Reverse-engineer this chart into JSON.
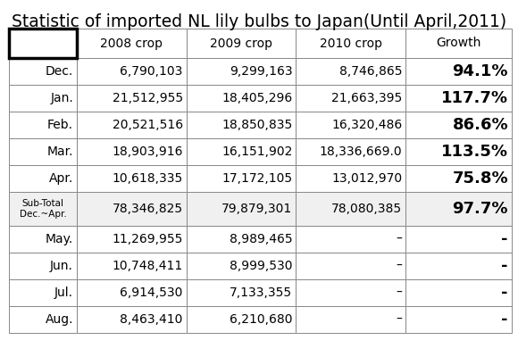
{
  "title": "Statistic of imported NL lily bulbs to Japan(Until April,2011)",
  "col_headers": [
    "",
    "2008 crop",
    "2009 crop",
    "2010 crop",
    "Growth"
  ],
  "rows": [
    [
      "Dec.",
      "6,790,103",
      "9,299,163",
      "8,746,865",
      "94.1%"
    ],
    [
      "Jan.",
      "21,512,955",
      "18,405,296",
      "21,663,395",
      "117.7%"
    ],
    [
      "Feb.",
      "20,521,516",
      "18,850,835",
      "16,320,486",
      "86.6%"
    ],
    [
      "Mar.",
      "18,903,916",
      "16,151,902",
      "18,336,669.0",
      "113.5%"
    ],
    [
      "Apr.",
      "10,618,335",
      "17,172,105",
      "13,012,970",
      "75.8%"
    ],
    [
      "Sub-Total\nDec.~Apr.",
      "78,346,825",
      "79,879,301",
      "78,080,385",
      "97.7%"
    ],
    [
      "May.",
      "11,269,955",
      "8,989,465",
      "–",
      "-"
    ],
    [
      "Jun.",
      "10,748,411",
      "8,999,530",
      "–",
      "-"
    ],
    [
      "Jul.",
      "6,914,530",
      "7,133,355",
      "–",
      "-"
    ],
    [
      "Aug.",
      "8,463,410",
      "6,210,680",
      "–",
      "-"
    ]
  ],
  "growth_bold_rows": [
    0,
    1,
    2,
    3,
    4,
    5
  ],
  "subtotal_row_index": 5,
  "title_fontsize": 13.5,
  "header_fontsize": 10,
  "cell_fontsize": 10,
  "subtotal_label_fontsize": 7.5,
  "growth_fontsize": 13,
  "bg_color": "#ffffff",
  "border_color": "#888888",
  "thick_border_color": "#000000",
  "title_color": "#000000",
  "data_color": "#000000"
}
